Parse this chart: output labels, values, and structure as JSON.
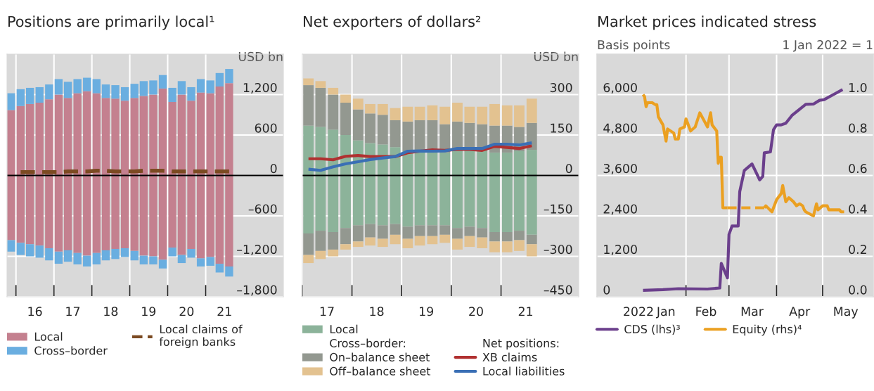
{
  "chart_data": [
    {
      "type": "bar",
      "title": "Positions are primarily local¹",
      "ylabel": "USD bn",
      "stacked": true,
      "grid": true,
      "legend": "bottom",
      "x": [
        "2015-11-15",
        "2016-02-15",
        "2016-05-15",
        "2016-08-15",
        "2016-11-15",
        "2017-02-15",
        "2017-05-15",
        "2017-08-15",
        "2017-11-15",
        "2018-02-15",
        "2018-05-15",
        "2018-08-15",
        "2018-11-15",
        "2019-02-15",
        "2019-05-15",
        "2019-08-15",
        "2019-11-15",
        "2020-02-15",
        "2020-05-15",
        "2020-08-15",
        "2020-11-15",
        "2021-02-15",
        "2021-05-15",
        "2021-08-15"
      ],
      "xlim": [
        "2015-10-07",
        "2023-01-19"
      ],
      "xticks": [
        {
          "value": "2016-01-01",
          "label": null
        },
        {
          "value": "2016-07-01",
          "label": "16"
        },
        {
          "value": "2017-01-01",
          "label": null
        },
        {
          "value": "2017-07-01",
          "label": "17"
        },
        {
          "value": "2018-01-01",
          "label": null
        },
        {
          "value": "2018-07-01",
          "label": "18"
        },
        {
          "value": "2019-01-01",
          "label": null
        },
        {
          "value": "2019-07-01",
          "label": "19"
        },
        {
          "value": "2020-01-01",
          "label": null
        },
        {
          "value": "2020-07-01",
          "label": "20"
        },
        {
          "value": "2021-01-01",
          "label": null
        },
        {
          "value": "2021-07-01",
          "label": "21"
        }
      ],
      "ylim": [
        -1800,
        1800
      ],
      "yticks": [
        {
          "value": -1800,
          "label": "–1,800"
        },
        {
          "value": -1200,
          "label": "–1,200"
        },
        {
          "value": -600,
          "label": "–600"
        },
        0,
        600,
        {
          "value": 1200,
          "label": "1,200"
        }
      ],
      "ref_lines": [
        {
          "axis": "y",
          "value": 0,
          "color": "#000000"
        }
      ],
      "series": [
        {
          "name": "Local",
          "color": "#c4808f",
          "values": [
            970,
            1030,
            1060,
            1080,
            1130,
            1200,
            1150,
            1220,
            1250,
            1220,
            1150,
            1140,
            1110,
            1150,
            1180,
            1200,
            1290,
            1090,
            1200,
            1110,
            1230,
            1220,
            1320,
            1370
          ]
        },
        {
          "name": "Cross–border",
          "color": "#6aaee0",
          "values": [
            250,
            250,
            240,
            230,
            220,
            230,
            240,
            210,
            200,
            210,
            200,
            200,
            200,
            210,
            220,
            210,
            200,
            210,
            200,
            200,
            200,
            190,
            200,
            210
          ]
        },
        {
          "color": "#c4808f",
          "values": [
            -960,
            -1000,
            -1020,
            -1040,
            -1080,
            -1130,
            -1110,
            -1150,
            -1190,
            -1150,
            -1110,
            -1090,
            -1080,
            -1120,
            -1190,
            -1200,
            -1250,
            -1070,
            -1180,
            -1090,
            -1230,
            -1210,
            -1310,
            -1350
          ]
        },
        {
          "color": "#6aaee0",
          "values": [
            -170,
            -180,
            -180,
            -180,
            -180,
            -180,
            -170,
            -170,
            -160,
            -170,
            -150,
            -150,
            -130,
            -140,
            -130,
            -120,
            -130,
            -130,
            -120,
            -130,
            -120,
            -130,
            -130,
            -150
          ]
        },
        {
          "name": "Local claims of\nforeign banks",
          "type": "line",
          "line_style": "dashed",
          "color": "#7b4a22",
          "values": [
            null,
            50,
            50,
            50,
            50,
            50,
            60,
            60,
            60,
            70,
            70,
            60,
            60,
            60,
            70,
            70,
            70,
            60,
            60,
            60,
            60,
            60,
            60,
            60
          ]
        }
      ]
    },
    {
      "type": "bar",
      "title": "Net exporters of dollars²",
      "ylabel": "USD bn",
      "stacked": true,
      "grid": true,
      "legend": "bottom",
      "annotations": [
        "Cross–border:",
        "Net positions:"
      ],
      "x": [
        "2017-02-15",
        "2017-05-15",
        "2017-08-15",
        "2017-11-15",
        "2018-02-15",
        "2018-05-15",
        "2018-08-15",
        "2018-11-15",
        "2019-02-15",
        "2019-05-15",
        "2019-08-15",
        "2019-11-15",
        "2020-02-15",
        "2020-05-15",
        "2020-08-15",
        "2020-11-15",
        "2021-02-15",
        "2021-05-15",
        "2021-08-15"
      ],
      "xlim": [
        "2017-01-01",
        "2022-07-26"
      ],
      "xticks": [
        {
          "value": "2017-01-01",
          "label": null
        },
        {
          "value": "2017-07-01",
          "label": "17"
        },
        {
          "value": "2018-01-01",
          "label": null
        },
        {
          "value": "2018-07-01",
          "label": "18"
        },
        {
          "value": "2019-01-01",
          "label": null
        },
        {
          "value": "2019-07-01",
          "label": "19"
        },
        {
          "value": "2020-01-01",
          "label": null
        },
        {
          "value": "2020-07-01",
          "label": "20"
        },
        {
          "value": "2021-01-01",
          "label": null
        },
        {
          "value": "2021-07-01",
          "label": "21"
        }
      ],
      "ylim": [
        -450,
        450
      ],
      "yticks": [
        {
          "value": -450,
          "label": "–450"
        },
        {
          "value": -300,
          "label": "–300"
        },
        {
          "value": -150,
          "label": "–150"
        },
        0,
        150,
        300
      ],
      "ref_lines": [
        {
          "axis": "y",
          "value": 0,
          "color": "#000000"
        }
      ],
      "series": [
        {
          "name": "Local",
          "color": "#8cb39a",
          "values": [
            185,
            180,
            170,
            150,
            130,
            120,
            115,
            105,
            90,
            90,
            85,
            85,
            90,
            90,
            90,
            85,
            85,
            90,
            95
          ]
        },
        {
          "name": "On–balance sheet",
          "color": "#939890",
          "values": [
            150,
            145,
            130,
            120,
            115,
            110,
            110,
            100,
            110,
            115,
            120,
            105,
            110,
            105,
            100,
            100,
            100,
            90,
            100
          ]
        },
        {
          "name": "Off–balance sheet",
          "color": "#e3c290",
          "values": [
            25,
            25,
            25,
            30,
            40,
            35,
            40,
            45,
            55,
            50,
            55,
            65,
            70,
            60,
            65,
            80,
            75,
            80,
            90
          ]
        },
        {
          "color": "#8cb39a",
          "values": [
            -215,
            -205,
            -210,
            -195,
            -185,
            -180,
            -185,
            -180,
            -190,
            -185,
            -185,
            -185,
            -195,
            -190,
            -195,
            -210,
            -210,
            -205,
            -220
          ]
        },
        {
          "color": "#939890",
          "values": [
            -80,
            -75,
            -65,
            -60,
            -60,
            -50,
            -50,
            -40,
            -45,
            -40,
            -40,
            -35,
            -40,
            -35,
            -35,
            -35,
            -35,
            -35,
            -35
          ]
        },
        {
          "color": "#e3c290",
          "values": [
            -30,
            -30,
            -25,
            -20,
            -20,
            -30,
            -30,
            -35,
            -35,
            -35,
            -30,
            -30,
            -40,
            -40,
            -40,
            -40,
            -40,
            -40,
            -45
          ]
        },
        {
          "name": "XB claims",
          "type": "line",
          "color": "#b03030",
          "values": [
            62,
            62,
            58,
            71,
            74,
            70,
            70,
            70,
            84,
            90,
            95,
            93,
            97,
            97,
            93,
            108,
            104,
            100,
            110
          ]
        },
        {
          "name": "Local liabilities",
          "type": "line",
          "color": "#3a6fb5",
          "values": [
            23,
            19,
            32,
            43,
            51,
            59,
            65,
            70,
            90,
            91,
            90,
            91,
            100,
            100,
            100,
            116,
            116,
            113,
            121
          ]
        }
      ]
    },
    {
      "type": "line",
      "title": "Market prices indicated stress",
      "ylabel": "Basis points",
      "y2label": "1 Jan 2022 = 1",
      "grid": true,
      "legend": "bottom",
      "xlim": [
        "2021-12-05",
        "2022-06-03"
      ],
      "xticks": [
        {
          "value": "2022-01-01",
          "label": "2022"
        },
        {
          "value": "2022-01-19",
          "label": "Jan"
        },
        {
          "value": "2022-02-01",
          "label": null
        },
        {
          "value": "2022-02-14",
          "label": "Feb"
        },
        {
          "value": "2022-03-01",
          "label": null
        },
        {
          "value": "2022-03-16",
          "label": "Mar"
        },
        {
          "value": "2022-04-01",
          "label": null
        },
        {
          "value": "2022-04-16",
          "label": "Apr"
        },
        {
          "value": "2022-05-01",
          "label": null
        },
        {
          "value": "2022-05-16",
          "label": "May"
        }
      ],
      "ylim": [
        0,
        7200
      ],
      "yticks": [
        0,
        {
          "value": 1200,
          "label": "1,200"
        },
        {
          "value": 2400,
          "label": "2,400"
        },
        {
          "value": 3600,
          "label": "3,600"
        },
        {
          "value": 4800,
          "label": "4,800"
        },
        {
          "value": 6000,
          "label": "6,000"
        }
      ],
      "y2lim": [
        0,
        1.2
      ],
      "y2ticks": [
        {
          "value": 0,
          "label": "0.0"
        },
        {
          "value": 0.2,
          "label": "0.2"
        },
        {
          "value": 0.4,
          "label": "0.4"
        },
        {
          "value": 0.6,
          "label": "0.6"
        },
        {
          "value": 0.8,
          "label": "0.8"
        },
        {
          "value": 1,
          "label": "1.0"
        }
      ],
      "series": [
        {
          "name": "CDS (lhs)³",
          "color": "#6b3f8c",
          "x": [
            "2022-01-04",
            "2022-01-17",
            "2022-01-27",
            "2022-02-15",
            "2022-02-23",
            "2022-02-24",
            "2022-02-28",
            "2022-03-01",
            "2022-03-03",
            "2022-03-07",
            "2022-03-08",
            "2022-03-11",
            "2022-03-16",
            "2022-03-21",
            "2022-03-23",
            "2022-03-24",
            "2022-03-28",
            "2022-03-30",
            "2022-04-01",
            "2022-04-04",
            "2022-04-07",
            "2022-04-11",
            "2022-04-20",
            "2022-04-25",
            "2022-04-29",
            "2022-05-02",
            "2022-05-08",
            "2022-05-14"
          ],
          "values": [
            190,
            210,
            240,
            230,
            260,
            990,
            560,
            1850,
            2100,
            2100,
            3120,
            3750,
            3940,
            3470,
            3570,
            4270,
            4300,
            4960,
            5100,
            5100,
            5150,
            5380,
            5710,
            5720,
            5830,
            5850,
            6000,
            6150
          ]
        },
        {
          "name": "Equity (rhs)⁴",
          "color": "#eba021",
          "axis": "y2",
          "x": [
            "2022-01-04",
            "2022-01-05",
            "2022-01-06",
            "2022-01-07",
            "2022-01-10",
            "2022-01-12",
            "2022-01-13",
            "2022-01-14",
            "2022-01-17",
            "2022-01-19",
            "2022-01-20",
            "2022-01-24",
            "2022-01-25",
            "2022-01-27",
            "2022-01-28",
            "2022-01-31",
            "2022-02-01",
            "2022-02-02",
            "2022-02-04",
            "2022-02-07",
            "2022-02-10",
            "2022-02-15",
            "2022-02-17",
            "2022-02-18",
            "2022-02-21",
            "2022-02-22",
            "2022-02-23",
            "2022-02-24",
            "2022-02-25",
            "2022-02-28",
            "2022-03-10",
            "2022-03-24",
            "2022-03-25",
            "2022-03-29",
            "2022-04-01",
            "2022-04-04",
            "2022-04-05",
            "2022-04-07",
            "2022-04-09",
            "2022-04-12",
            "2022-04-14",
            "2022-04-16",
            "2022-04-18",
            "2022-04-19",
            "2022-04-20",
            "2022-04-25",
            "2022-04-27",
            "2022-04-28",
            "2022-05-01",
            "2022-05-04",
            "2022-05-05",
            "2022-05-12",
            "2022-05-13",
            "2022-05-15"
          ],
          "values": [
            1.0,
            0.99,
            0.94,
            0.96,
            0.96,
            0.95,
            0.95,
            0.89,
            0.85,
            0.77,
            0.83,
            0.81,
            0.78,
            0.78,
            0.83,
            0.84,
            0.88,
            0.86,
            0.82,
            0.84,
            0.91,
            0.84,
            0.91,
            0.85,
            0.82,
            0.66,
            0.69,
            0.69,
            0.44,
            0.44,
            null,
            0.44,
            0.45,
            0.42,
            0.48,
            0.51,
            0.55,
            0.47,
            0.49,
            0.47,
            0.45,
            0.46,
            0.45,
            0.43,
            0.42,
            0.4,
            0.46,
            0.43,
            0.45,
            0.45,
            0.43,
            0.43,
            0.42,
            0.42
          ]
        },
        {
          "color": "#eca224",
          "axis": "y2",
          "line_style": "dashed",
          "x": [
            "2022-02-28",
            "2022-03-24"
          ],
          "values": [
            0.44,
            0.44
          ]
        }
      ]
    }
  ]
}
